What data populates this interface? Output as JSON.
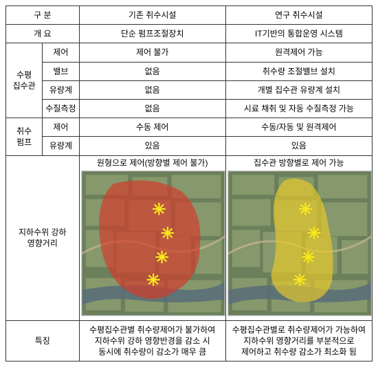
{
  "header": {
    "col_group": "구 분",
    "col_existing": "기존 취수시설",
    "col_research": "연구 취수시설"
  },
  "rows": {
    "overview": {
      "label": "개    요",
      "existing": "단순 펌프조절장치",
      "research": "IT기반의 통합운영 시스템"
    },
    "pipe_group": "수평\n집수관",
    "pipe_control": {
      "label": "제어",
      "existing": "제어 불가",
      "research": "원격제어 가능"
    },
    "pipe_valve": {
      "label": "밸브",
      "existing": "없음",
      "research": "취수량 조절밸브 설치"
    },
    "pipe_flow": {
      "label": "유량계",
      "existing": "없음",
      "research": "개별 집수관 유량계 설치"
    },
    "pipe_quality": {
      "label": "수질측정",
      "existing": "없음",
      "research": "시료 채취 및 자동 수질측정 가능"
    },
    "pump_group": "취수\n펌프",
    "pump_control": {
      "label": "제어",
      "existing": "수동 제어",
      "research": "수동/자동 및 원격제어"
    },
    "pump_flow": {
      "label": "유량계",
      "existing": "있음",
      "research": "있음"
    },
    "impact": {
      "label": "지하수위 강하\n영향거리",
      "map_existing_title": "원형으로 제어(방향별 제어 불가)",
      "map_research_title": "집수관 방향별로 제어 가능"
    },
    "feature": {
      "label": "특징",
      "existing": "수평집수관별 취수량제어가 불가하여 지하수위 강하 영향반경을 감소 시 동시에 취수량이 감소가 매우 큼",
      "research": "수평집수관별로 취수량제어가 가능하여 지하수위 영향거리를 부분적으로 제어하고 취수량 감소가 최소화 됨"
    }
  },
  "map": {
    "terrain_bg": "#6a7f5a",
    "field_color": "#8a9b6e",
    "river_color": "#5a6f78",
    "road_color": "#c8b890",
    "border_color": "#aaaaaa",
    "existing_overlay": "#d63a2a",
    "research_overlay": "#e8c82a",
    "overlay_opacity": 0.68,
    "star_color": "#f8e71c"
  }
}
